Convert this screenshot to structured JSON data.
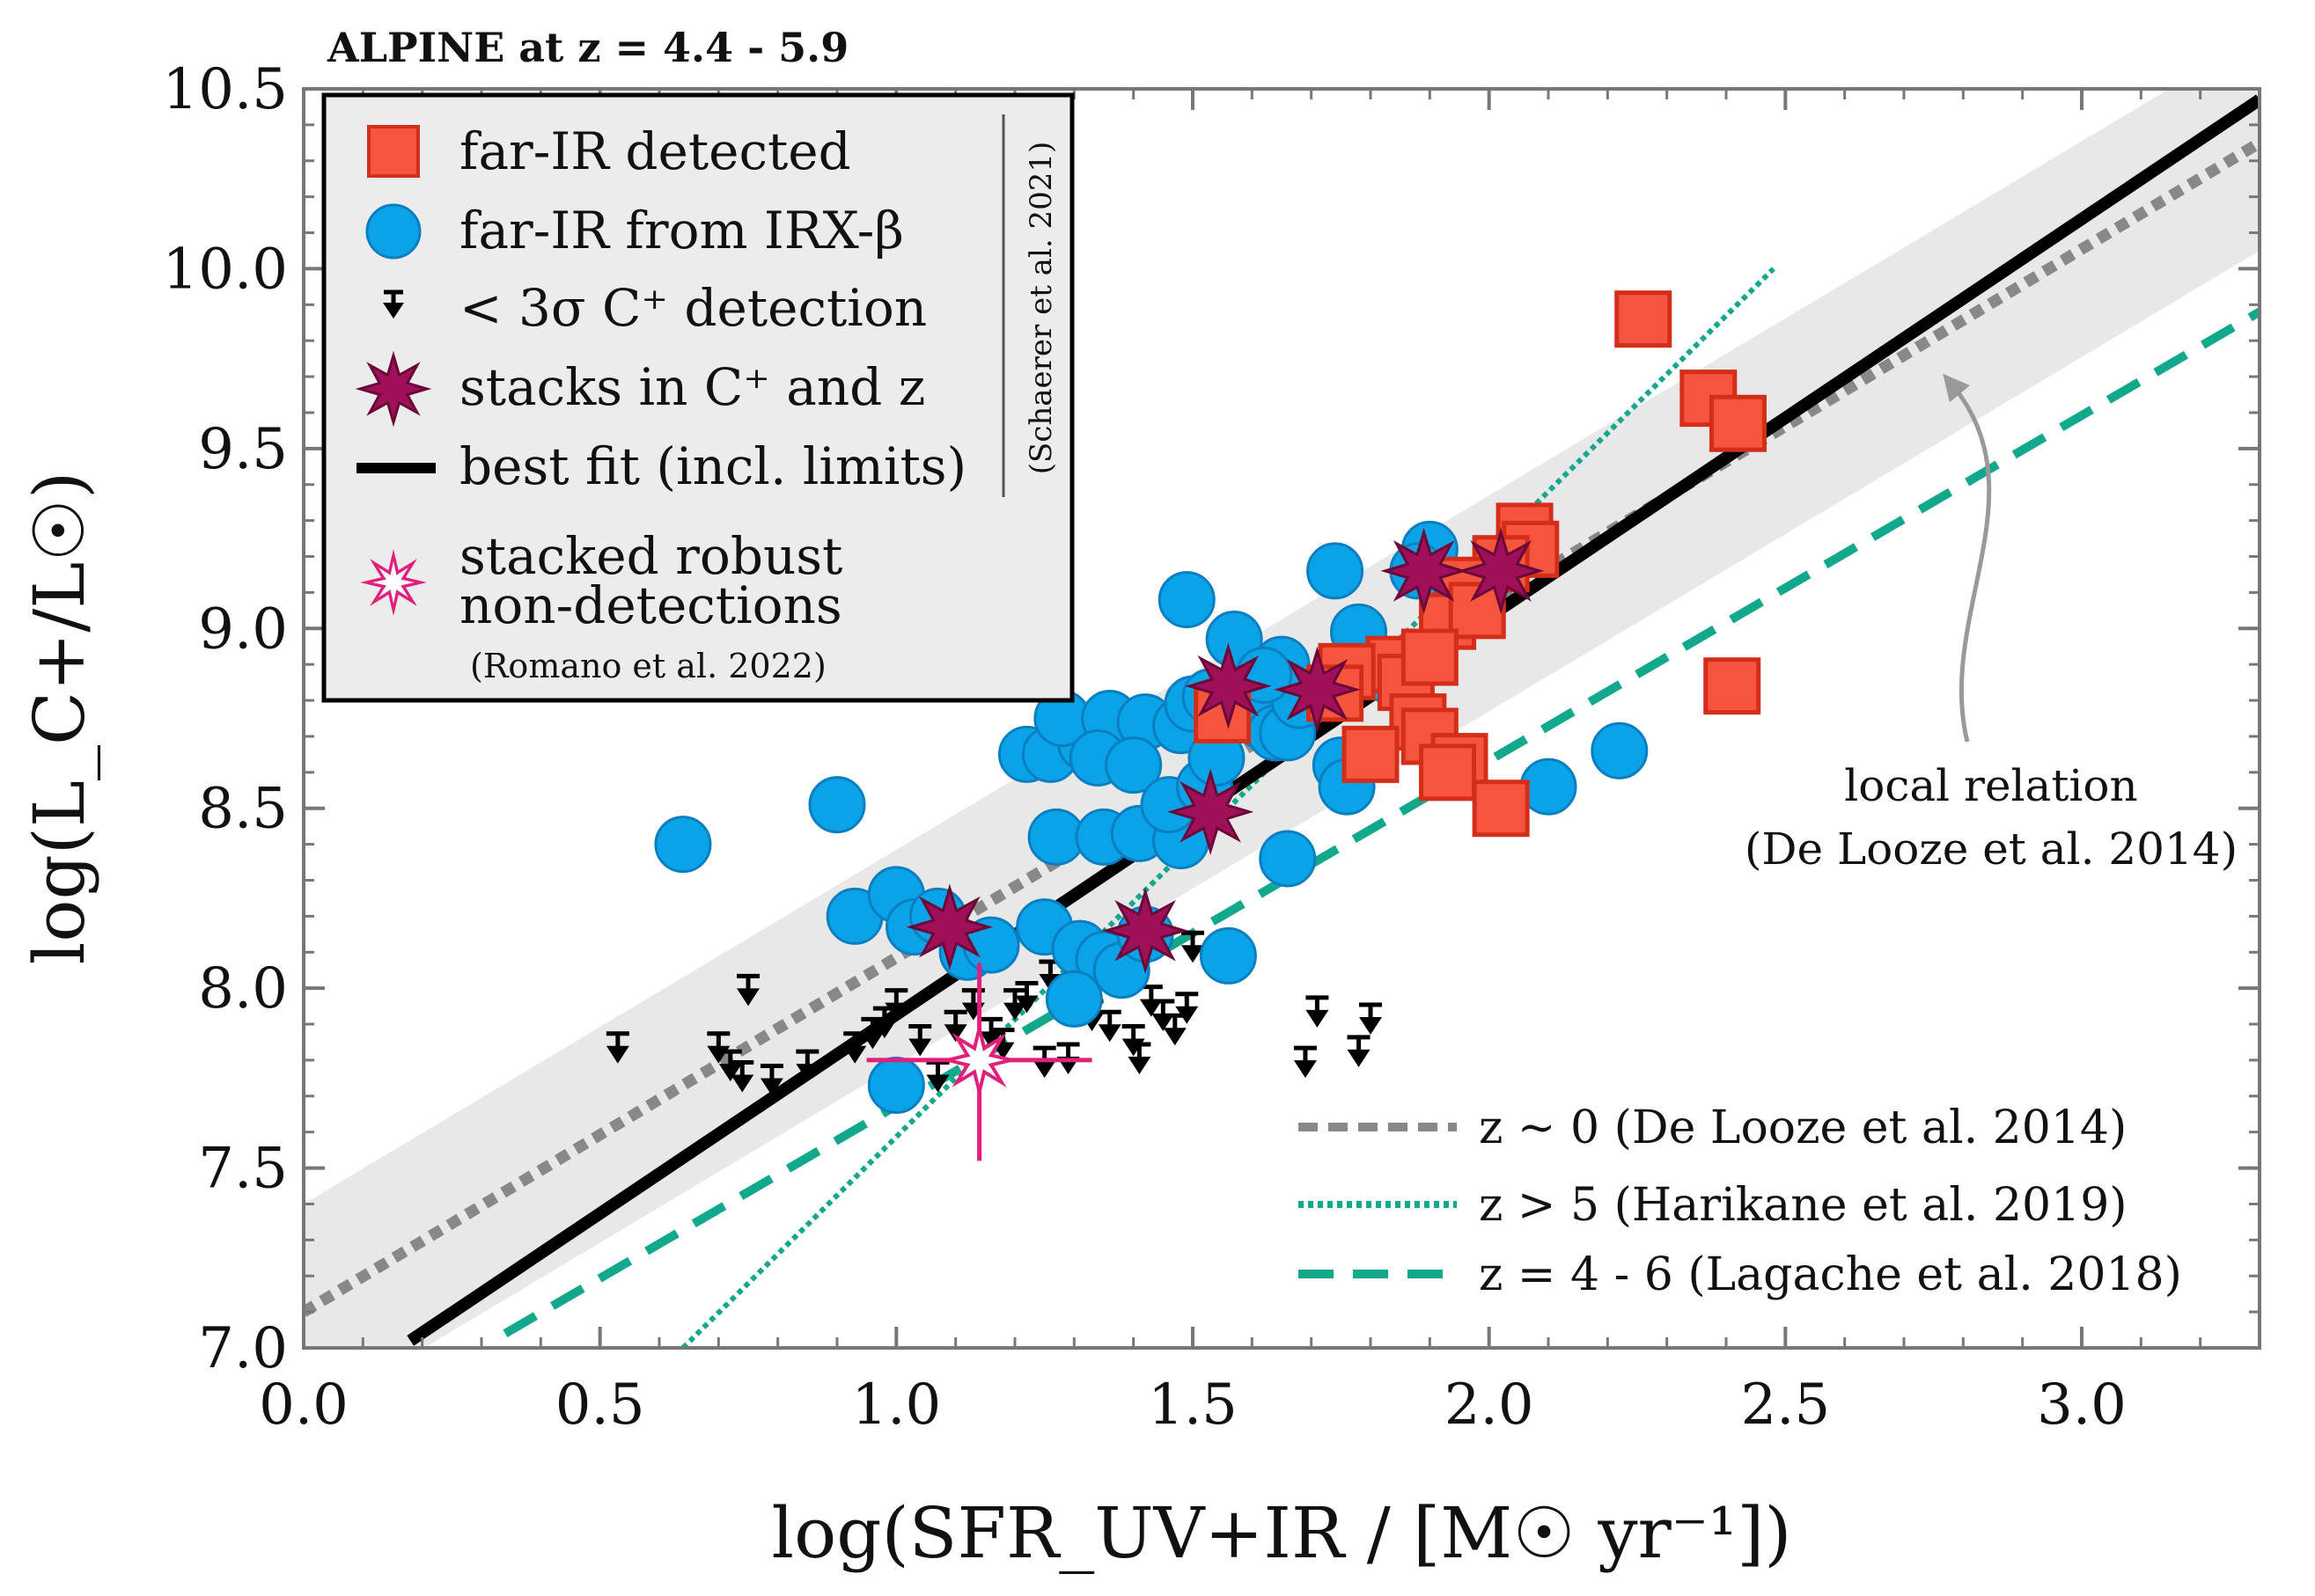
{
  "chart_data": {
    "type": "scatter",
    "title": "ALPINE at z = 4.4 - 5.9",
    "xlabel": "log(SFR_UV+IR / [M☉ yr⁻¹])",
    "ylabel": "log(L_C+/L☉)",
    "xlim": [
      0.0,
      3.3
    ],
    "ylim": [
      7.0,
      10.5
    ],
    "xticks": [
      "0.0",
      "0.5",
      "1.0",
      "1.5",
      "2.0",
      "2.5",
      "3.0"
    ],
    "yticks": [
      "7.0",
      "7.5",
      "8.0",
      "8.5",
      "9.0",
      "9.5",
      "10.0",
      "10.5"
    ],
    "series": [
      {
        "name": "far-IR detected",
        "marker": "square",
        "color": "#f4553c",
        "points": [
          [
            2.26,
            9.86
          ],
          [
            2.37,
            9.64
          ],
          [
            2.42,
            9.57
          ],
          [
            2.41,
            8.84
          ],
          [
            2.06,
            9.27
          ],
          [
            2.07,
            9.22
          ],
          [
            2.02,
            9.18
          ],
          [
            1.96,
            9.12
          ],
          [
            1.93,
            9.02
          ],
          [
            1.98,
            9.05
          ],
          [
            1.84,
            8.9
          ],
          [
            1.76,
            8.88
          ],
          [
            1.86,
            8.85
          ],
          [
            1.9,
            8.92
          ],
          [
            1.88,
            8.74
          ],
          [
            1.9,
            8.7
          ],
          [
            1.95,
            8.63
          ],
          [
            1.8,
            8.65
          ],
          [
            1.74,
            8.82
          ],
          [
            1.55,
            8.76
          ],
          [
            2.02,
            8.5
          ],
          [
            1.93,
            8.6
          ]
        ]
      },
      {
        "name": "far-IR from IRX-β",
        "marker": "circle",
        "color": "#0aa3e8",
        "points": [
          [
            0.64,
            8.4
          ],
          [
            0.9,
            8.51
          ],
          [
            0.93,
            8.2
          ],
          [
            1.0,
            8.26
          ],
          [
            1.03,
            8.17
          ],
          [
            1.07,
            8.2
          ],
          [
            1.12,
            8.1
          ],
          [
            1.16,
            8.12
          ],
          [
            1.25,
            8.17
          ],
          [
            1.31,
            8.11
          ],
          [
            1.35,
            8.08
          ],
          [
            1.38,
            8.05
          ],
          [
            1.42,
            8.15
          ],
          [
            1.56,
            8.09
          ],
          [
            1.3,
            7.97
          ],
          [
            1.0,
            7.73
          ],
          [
            1.22,
            8.65
          ],
          [
            1.26,
            8.65
          ],
          [
            1.32,
            8.68
          ],
          [
            1.28,
            8.75
          ],
          [
            1.36,
            8.75
          ],
          [
            1.42,
            8.74
          ],
          [
            1.48,
            8.73
          ],
          [
            1.34,
            8.64
          ],
          [
            1.4,
            8.62
          ],
          [
            1.27,
            8.42
          ],
          [
            1.35,
            8.42
          ],
          [
            1.41,
            8.43
          ],
          [
            1.48,
            8.41
          ],
          [
            1.46,
            8.51
          ],
          [
            1.52,
            8.56
          ],
          [
            1.54,
            8.64
          ],
          [
            1.5,
            8.79
          ],
          [
            1.53,
            8.81
          ],
          [
            1.49,
            9.08
          ],
          [
            1.57,
            8.97
          ],
          [
            1.6,
            8.8
          ],
          [
            1.62,
            8.74
          ],
          [
            1.64,
            8.71
          ],
          [
            1.66,
            8.71
          ],
          [
            1.68,
            8.8
          ],
          [
            1.65,
            8.9
          ],
          [
            1.62,
            8.87
          ],
          [
            1.66,
            8.36
          ],
          [
            1.74,
            9.16
          ],
          [
            1.75,
            8.62
          ],
          [
            1.76,
            8.56
          ],
          [
            1.78,
            8.99
          ],
          [
            1.83,
            8.87
          ],
          [
            1.9,
            9.22
          ],
          [
            1.88,
            9.16
          ],
          [
            2.1,
            8.56
          ],
          [
            2.22,
            8.66
          ]
        ]
      },
      {
        "name": "< 3σ C+ detection",
        "marker": "upper-limit",
        "color": "#000000",
        "points": [
          [
            0.53,
            7.82
          ],
          [
            0.7,
            7.82
          ],
          [
            0.72,
            7.77
          ],
          [
            0.74,
            7.74
          ],
          [
            0.75,
            7.98
          ],
          [
            0.79,
            7.73
          ],
          [
            0.85,
            7.77
          ],
          [
            0.93,
            7.82
          ],
          [
            0.96,
            7.86
          ],
          [
            0.98,
            7.89
          ],
          [
            1.0,
            7.94
          ],
          [
            1.04,
            7.84
          ],
          [
            1.07,
            7.74
          ],
          [
            1.1,
            7.88
          ],
          [
            1.13,
            7.94
          ],
          [
            1.16,
            7.86
          ],
          [
            1.18,
            7.83
          ],
          [
            1.2,
            7.94
          ],
          [
            1.22,
            7.96
          ],
          [
            1.25,
            7.78
          ],
          [
            1.26,
            8.02
          ],
          [
            1.29,
            7.79
          ],
          [
            1.33,
            7.91
          ],
          [
            1.36,
            7.88
          ],
          [
            1.4,
            7.84
          ],
          [
            1.41,
            7.79
          ],
          [
            1.43,
            7.95
          ],
          [
            1.45,
            7.91
          ],
          [
            1.47,
            7.87
          ],
          [
            1.49,
            7.93
          ],
          [
            1.5,
            8.1
          ],
          [
            1.69,
            7.78
          ],
          [
            1.71,
            7.92
          ],
          [
            1.78,
            7.81
          ],
          [
            1.8,
            7.9
          ]
        ]
      },
      {
        "name": "stacks in C+ and z",
        "marker": "star",
        "color": "#a0105a",
        "points": [
          [
            1.09,
            8.17
          ],
          [
            1.42,
            8.16
          ],
          [
            1.53,
            8.49
          ],
          [
            1.56,
            8.84
          ],
          [
            1.71,
            8.83
          ],
          [
            1.89,
            9.16
          ],
          [
            2.02,
            9.16
          ]
        ]
      },
      {
        "name": "stacked robust non-detections",
        "marker": "open-star",
        "color": "#e0207a",
        "points": [
          [
            1.14,
            7.8
          ]
        ],
        "xerr": 0.19,
        "yerr_up": 0.27,
        "yerr_down": 0.28
      }
    ],
    "lines": [
      {
        "name": "best fit (incl. limits)",
        "style": "solid",
        "color": "#000000",
        "x": [
          0.18,
          3.3
        ],
        "y": [
          7.02,
          10.47
        ]
      },
      {
        "name": "z ~ 0 (De Looze et al. 2014)",
        "style": "dotted-thick",
        "color": "#888888",
        "x": [
          0.0,
          3.3
        ],
        "y": [
          7.1,
          10.35
        ]
      },
      {
        "name": "z > 5 (Harikane et al. 2019)",
        "style": "dotted",
        "color": "#12a88c",
        "x": [
          0.64,
          2.48
        ],
        "y": [
          7.0,
          10.0
        ]
      },
      {
        "name": "z = 4 - 6 (Lagache et al. 2018)",
        "style": "dashed",
        "color": "#12a88c",
        "x": [
          0.34,
          3.3
        ],
        "y": [
          7.04,
          9.88
        ]
      }
    ],
    "band": {
      "name": "De Looze scatter",
      "color": "#e8e8e8",
      "x": [
        0.0,
        3.3
      ],
      "y_low": [
        6.8,
        10.05
      ],
      "y_high": [
        7.4,
        10.65
      ]
    },
    "legend": {
      "placement": "top-left",
      "entries": [
        "far-IR detected",
        "far-IR from IRX-β",
        "< 3σ C⁺ detection",
        "stacks in C⁺ and z",
        "best fit (incl. limits)"
      ],
      "credit_schaerer": "(Schaerer et al. 2021)",
      "robust_line1": "stacked robust",
      "robust_line2": "non-detections",
      "credit_romano": "(Romano et al. 2022)"
    },
    "ref_legend": {
      "placement": "bottom-right",
      "entries": [
        "z ~ 0 (De Looze et al. 2014)",
        "z > 5 (Harikane et al. 2019)",
        "z = 4 - 6 (Lagache et al. 2018)"
      ]
    },
    "annotation": {
      "line1": "local relation",
      "line2": "(De Looze et al. 2014)",
      "arrow_target": [
        2.78,
        9.68
      ]
    }
  }
}
